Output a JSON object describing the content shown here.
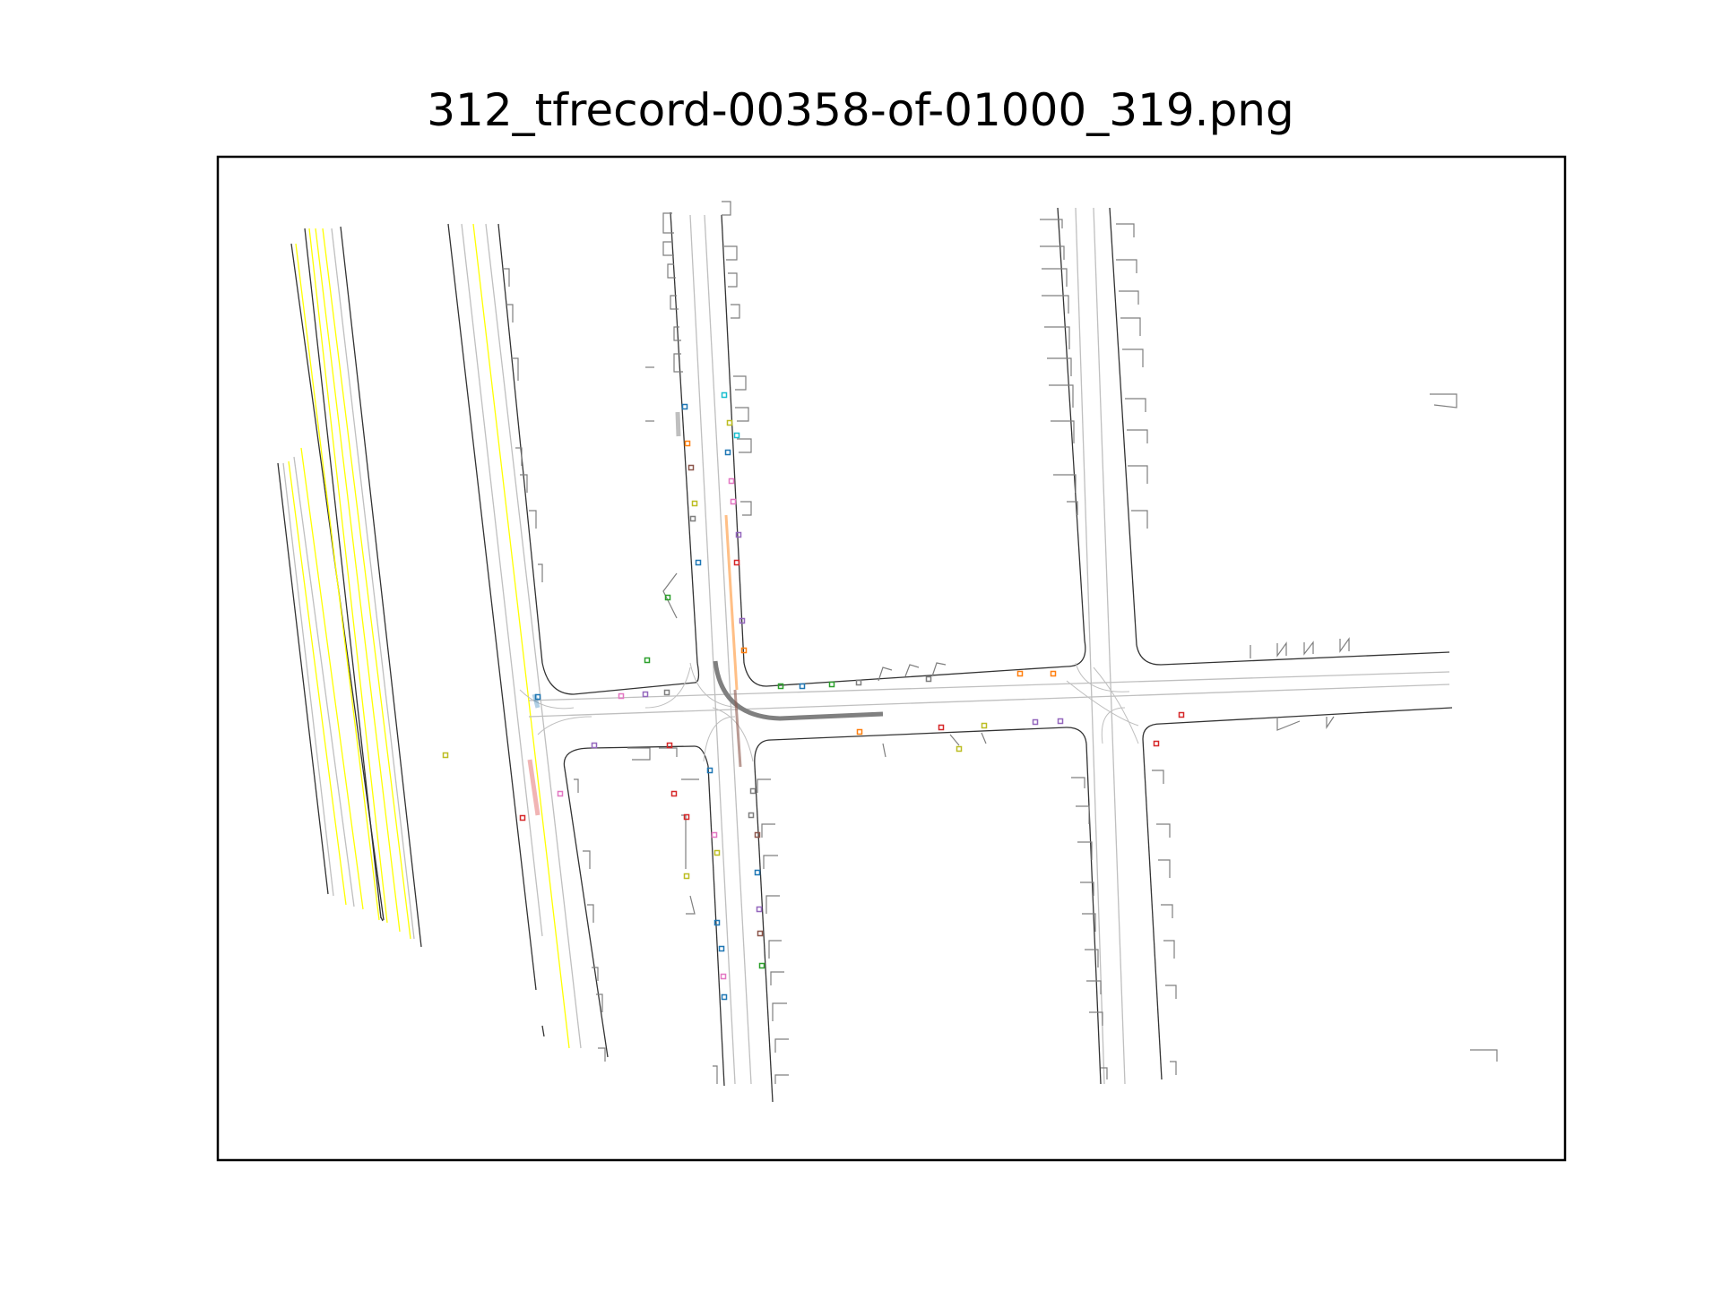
{
  "title": "312_tfrecord-00358-of-01000_319.png",
  "colors": {
    "frame": "#000000",
    "road_edge": "#333333",
    "lane_center": "#bfbfbf",
    "yellow_line": "#ffff00",
    "crosswalk_gray": "#7f7f7f",
    "ego_trajectory": "#808080",
    "agent_palette": [
      "#1f77b4",
      "#ff7f0e",
      "#2ca02c",
      "#d62728",
      "#9467bd",
      "#8c564b",
      "#e377c2",
      "#7f7f7f",
      "#bcbd22",
      "#17becf"
    ]
  },
  "scene": {
    "has_axes_frame": true,
    "has_ticks": false,
    "ego_path": "left turn from southbound lane into eastbound lane"
  }
}
